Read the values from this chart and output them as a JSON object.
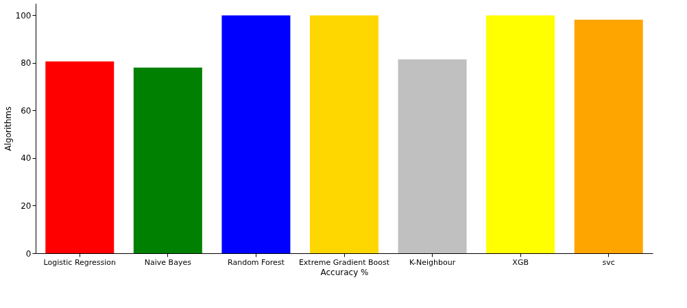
{
  "chart_data": {
    "type": "bar",
    "xlabel": "Accuracy %",
    "ylabel": "Algorithms",
    "categories": [
      "Logistic Regression",
      "Naive Bayes",
      "Random Forest",
      "Extreme Gradient Boost",
      "K-Neighbour",
      "XGB",
      "svc"
    ],
    "values": [
      80.6,
      78.0,
      100,
      100,
      81.5,
      100,
      98.2
    ],
    "colors": [
      "#ff0000",
      "#008000",
      "#0000ff",
      "#ffd700",
      "#c0c0c0",
      "#ffff00",
      "#ffa500"
    ],
    "ylim": [
      0,
      105
    ],
    "yticks": [
      0,
      20,
      40,
      60,
      80,
      100
    ],
    "grid": false
  }
}
